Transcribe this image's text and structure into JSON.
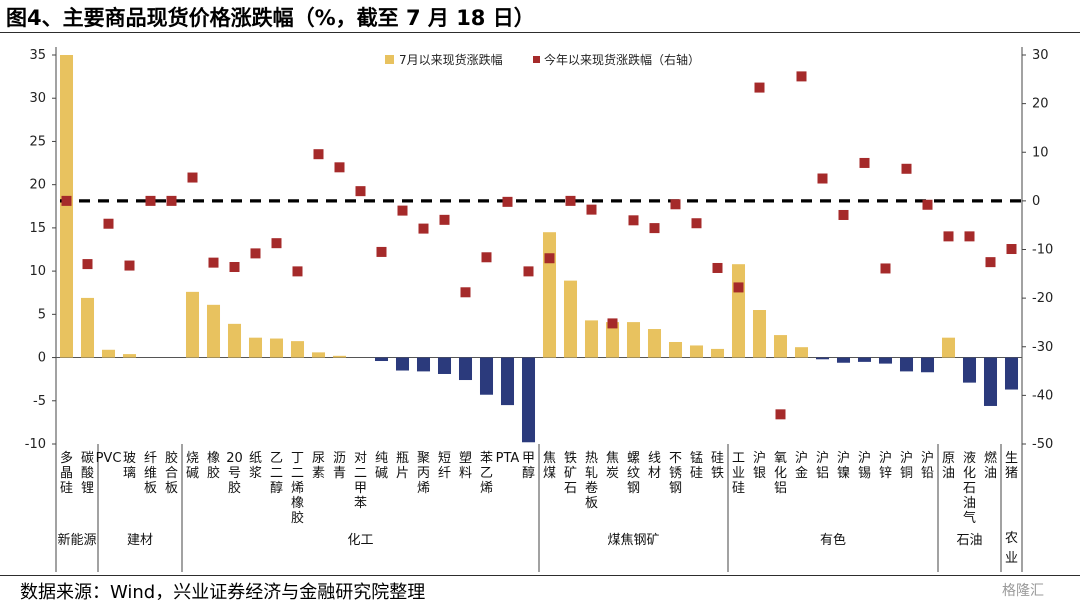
{
  "title": "图4、主要商品现货价格涨跌幅（%，截至 7 月 18 日）",
  "source": "数据来源：Wind，兴业证券经济与金融研究院整理",
  "watermark": "格隆汇",
  "colors": {
    "bar_pos": "#e8c25f",
    "bar_neg": "#2b3a7c",
    "marker": "#a52a2a",
    "zero_line": "#000000"
  },
  "chart_data": {
    "type": "bar",
    "title": "图4、主要商品现货价格涨跌幅（%，截至 7 月 18 日）",
    "ylim": [
      -10,
      35
    ],
    "y2lim": [
      -50,
      30
    ],
    "yticks": [
      -10,
      -5,
      0,
      5,
      10,
      15,
      20,
      25,
      30,
      35
    ],
    "y2ticks": [
      -50,
      -40,
      -30,
      -20,
      -10,
      0,
      10,
      20,
      30
    ],
    "legend_position": "top-center",
    "grid": false,
    "reference_line_y2": 0,
    "categories": [
      "多晶硅",
      "碳酸锂",
      "PVC",
      "玻璃",
      "纤维板",
      "胶合板",
      "烧碱",
      "橡胶",
      "20号胶",
      "纸浆",
      "乙二醇",
      "丁二烯橡胶",
      "尿素",
      "沥青",
      "对二甲苯",
      "纯碱",
      "瓶片",
      "聚丙烯",
      "短纤",
      "塑料",
      "苯乙烯",
      "PTA",
      "甲醇",
      "焦煤",
      "铁矿石",
      "热轧卷板",
      "焦炭",
      "螺纹钢",
      "线材",
      "不锈钢",
      "锰硅",
      "硅铁",
      "工业硅",
      "沪银",
      "氧化铝",
      "沪金",
      "沪铝",
      "沪镍",
      "沪锡",
      "沪锌",
      "沪铜",
      "沪铅",
      "原油",
      "液化石油气",
      "燃油",
      "生猪"
    ],
    "groups": [
      {
        "name": "新能源",
        "count": 2
      },
      {
        "name": "建材",
        "count": 4
      },
      {
        "name": "化工",
        "count": 17
      },
      {
        "name": "煤焦钢矿",
        "count": 9
      },
      {
        "name": "有色",
        "count": 10
      },
      {
        "name": "石油",
        "count": 3
      },
      {
        "name": "农业",
        "count": 1
      }
    ],
    "series": [
      {
        "name": "7月以来现货涨跌幅",
        "axis": "left",
        "type": "bar",
        "values": [
          35.0,
          6.9,
          0.9,
          0.4,
          0,
          0,
          7.6,
          6.1,
          3.9,
          2.3,
          2.2,
          1.9,
          0.6,
          0.2,
          0,
          -0.4,
          -1.5,
          -1.6,
          -1.9,
          -2.6,
          -4.3,
          -5.5,
          -9.8,
          14.5,
          8.9,
          4.3,
          4.1,
          4.1,
          3.3,
          1.8,
          1.4,
          1.0,
          10.8,
          5.5,
          2.6,
          1.2,
          -0.2,
          -0.6,
          -0.5,
          -0.7,
          -1.6,
          -1.7,
          2.3,
          -2.9,
          -5.6,
          -3.7
        ]
      },
      {
        "name": "今年以来现货涨跌幅（右轴）",
        "axis": "right",
        "type": "scatter",
        "values": [
          0,
          -13,
          -4.7,
          -13.3,
          0,
          0,
          4.8,
          -12.7,
          -13.6,
          -10.8,
          -8.7,
          -14.5,
          9.6,
          6.9,
          2,
          -10.5,
          -2,
          -5.7,
          -3.9,
          -18.8,
          -11.6,
          -0.2,
          -14.5,
          -11.8,
          0,
          -1.8,
          -25.2,
          -4,
          -5.6,
          -0.7,
          -4.6,
          -13.8,
          -17.8,
          23.3,
          -43.9,
          25.6,
          4.6,
          -2.9,
          7.8,
          -13.9,
          6.6,
          -0.8,
          -7.3,
          -7.3,
          -12.6,
          -9.9
        ]
      }
    ]
  }
}
